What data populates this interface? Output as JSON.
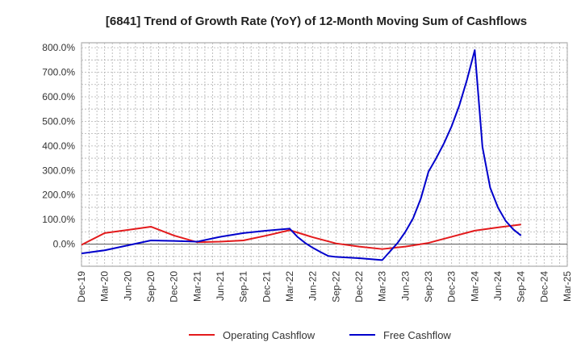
{
  "chart_data": {
    "type": "line",
    "title": "[6841]  Trend of Growth Rate (YoY) of 12-Month Moving Sum of Cashflows",
    "xlabel": "",
    "ylabel": "",
    "ylim": [
      -90,
      820
    ],
    "y_ticks": [
      0,
      100,
      200,
      300,
      400,
      500,
      600,
      700,
      800
    ],
    "y_tick_labels": [
      "0.0%",
      "100.0%",
      "200.0%",
      "300.0%",
      "400.0%",
      "500.0%",
      "600.0%",
      "700.0%",
      "800.0%"
    ],
    "x_tick_labels": [
      "Dec-19",
      "Mar-20",
      "Jun-20",
      "Sep-20",
      "Dec-20",
      "Mar-21",
      "Jun-21",
      "Sep-21",
      "Dec-21",
      "Mar-22",
      "Jun-22",
      "Sep-22",
      "Dec-22",
      "Mar-23",
      "Jun-23",
      "Sep-23",
      "Dec-23",
      "Mar-24",
      "Jun-24",
      "Sep-24",
      "Dec-24",
      "Mar-25"
    ],
    "x_months": [
      "2019-12",
      "2020-01",
      "2020-02",
      "2020-03",
      "2020-04",
      "2020-05",
      "2020-06",
      "2020-07",
      "2020-08",
      "2020-09",
      "2020-10",
      "2020-11",
      "2020-12",
      "2021-01",
      "2021-02",
      "2021-03",
      "2021-04",
      "2021-05",
      "2021-06",
      "2021-07",
      "2021-08",
      "2021-09",
      "2021-10",
      "2021-11",
      "2021-12",
      "2022-01",
      "2022-02",
      "2022-03",
      "2022-04",
      "2022-05",
      "2022-06",
      "2022-07",
      "2022-08",
      "2022-09",
      "2022-10",
      "2022-11",
      "2022-12",
      "2023-01",
      "2023-02",
      "2023-03",
      "2023-04",
      "2023-05",
      "2023-06",
      "2023-07",
      "2023-08",
      "2023-09",
      "2023-10",
      "2023-11",
      "2023-12",
      "2024-01",
      "2024-02",
      "2024-03",
      "2024-04",
      "2024-05",
      "2024-06",
      "2024-07",
      "2024-08",
      "2024-09",
      "2024-10",
      "2024-11",
      "2024-12",
      "2025-01",
      "2025-02",
      "2025-03"
    ],
    "grid": true,
    "legend_placement": "bottom",
    "series": [
      {
        "name": "Operating Cashflow",
        "color": "#e31a1c",
        "points": [
          [
            "2019-12",
            -3
          ],
          [
            "2020-03",
            45
          ],
          [
            "2020-06",
            58
          ],
          [
            "2020-09",
            71
          ],
          [
            "2020-12",
            35
          ],
          [
            "2021-03",
            8
          ],
          [
            "2021-06",
            10
          ],
          [
            "2021-09",
            15
          ],
          [
            "2021-12",
            35
          ],
          [
            "2022-03",
            57
          ],
          [
            "2022-06",
            28
          ],
          [
            "2022-09",
            3
          ],
          [
            "2022-12",
            -10
          ],
          [
            "2023-03",
            -20
          ],
          [
            "2023-06",
            -10
          ],
          [
            "2023-09",
            5
          ],
          [
            "2023-12",
            30
          ],
          [
            "2024-03",
            55
          ],
          [
            "2024-06",
            68
          ],
          [
            "2024-09",
            80
          ]
        ]
      },
      {
        "name": "Free Cashflow",
        "color": "#0000cc",
        "points": [
          [
            "2019-12",
            -38
          ],
          [
            "2020-03",
            -25
          ],
          [
            "2020-06",
            -5
          ],
          [
            "2020-09",
            15
          ],
          [
            "2020-12",
            13
          ],
          [
            "2021-03",
            10
          ],
          [
            "2021-06",
            30
          ],
          [
            "2021-09",
            45
          ],
          [
            "2021-12",
            55
          ],
          [
            "2022-03",
            63
          ],
          [
            "2022-04",
            30
          ],
          [
            "2022-05",
            5
          ],
          [
            "2022-06",
            -15
          ],
          [
            "2022-07",
            -32
          ],
          [
            "2022-08",
            -48
          ],
          [
            "2022-09",
            -52
          ],
          [
            "2022-12",
            -57
          ],
          [
            "2023-03",
            -65
          ],
          [
            "2023-04",
            -30
          ],
          [
            "2023-05",
            5
          ],
          [
            "2023-06",
            50
          ],
          [
            "2023-07",
            105
          ],
          [
            "2023-08",
            185
          ],
          [
            "2023-09",
            295
          ],
          [
            "2023-10",
            350
          ],
          [
            "2023-11",
            410
          ],
          [
            "2023-12",
            480
          ],
          [
            "2024-01",
            565
          ],
          [
            "2024-02",
            670
          ],
          [
            "2024-03",
            790
          ],
          [
            "2024-04",
            395
          ],
          [
            "2024-05",
            230
          ],
          [
            "2024-06",
            150
          ],
          [
            "2024-07",
            95
          ],
          [
            "2024-08",
            60
          ],
          [
            "2024-09",
            35
          ]
        ]
      }
    ]
  }
}
